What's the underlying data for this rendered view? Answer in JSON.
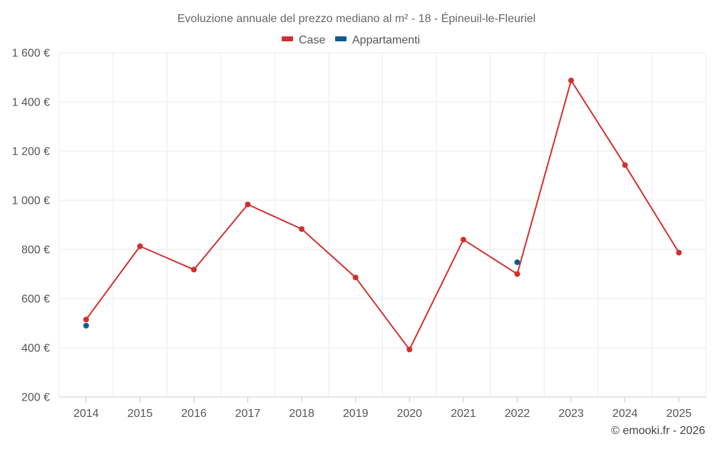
{
  "chart_data": {
    "type": "line",
    "title": "Evoluzione annuale del prezzo mediano al m² - 18 - Épineuil-le-Fleuriel",
    "categories": [
      "2014",
      "2015",
      "2016",
      "2017",
      "2018",
      "2019",
      "2020",
      "2021",
      "2022",
      "2023",
      "2024",
      "2025"
    ],
    "series": [
      {
        "name": "Case",
        "color": "#d32f2f",
        "values": [
          515,
          813,
          718,
          983,
          883,
          686,
          393,
          840,
          700,
          1487,
          1143,
          787
        ]
      },
      {
        "name": "Appartamenti",
        "color": "#0d5c91",
        "values": [
          490,
          null,
          null,
          null,
          null,
          null,
          null,
          null,
          748,
          null,
          null,
          null
        ]
      }
    ],
    "y_ticks": [
      200,
      400,
      600,
      800,
      1000,
      1200,
      1400,
      1600
    ],
    "y_tick_labels": [
      "200 €",
      "400 €",
      "600 €",
      "800 €",
      "1 000 €",
      "1 200 €",
      "1 400 €",
      "1 600 €"
    ],
    "ylim": [
      200,
      1600
    ],
    "xlabel": "",
    "ylabel": "",
    "legend_position": "top-center",
    "grid": true
  },
  "credit": "© emooki.fr - 2026"
}
